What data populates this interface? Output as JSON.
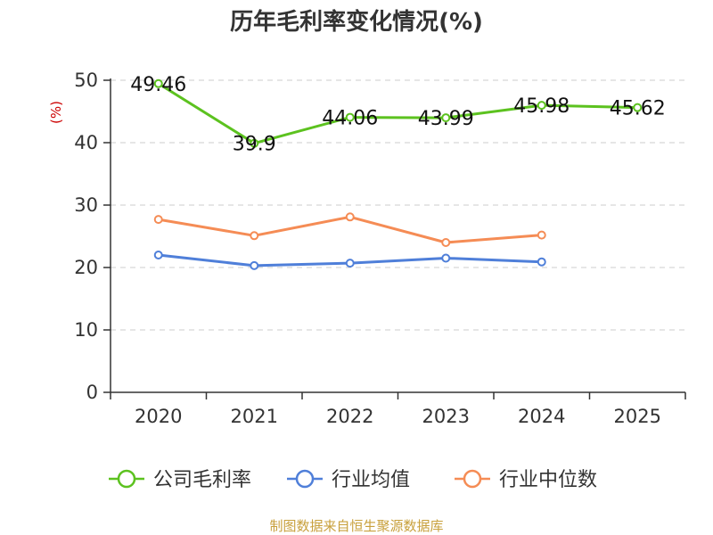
{
  "chart_data": {
    "type": "line",
    "title": "历年毛利率变化情况(%)",
    "ylabel": "(%)",
    "xlabel": "",
    "categories": [
      "2020",
      "2021",
      "2022",
      "2023",
      "2024",
      "2025"
    ],
    "ylim": [
      0,
      50
    ],
    "yticks": [
      0,
      10,
      20,
      30,
      40,
      50
    ],
    "grid": true,
    "legend_position": "bottom",
    "series": [
      {
        "name": "公司毛利率",
        "color": "#5cc21f",
        "values": [
          49.46,
          39.9,
          44.06,
          43.99,
          45.98,
          45.62
        ],
        "labels": [
          "49.46",
          "39.9",
          "44.06",
          "43.99",
          "45.98",
          "45.62"
        ]
      },
      {
        "name": "行业均值",
        "color": "#4f7fd9",
        "values": [
          22.0,
          20.3,
          20.7,
          21.5,
          20.9,
          null
        ]
      },
      {
        "name": "行业中位数",
        "color": "#f58c55",
        "values": [
          27.7,
          25.1,
          28.1,
          24.0,
          25.2,
          null
        ]
      }
    ]
  },
  "source_text": "制图数据来自恒生聚源数据库",
  "colors": {
    "ylabel": "#cc0000",
    "source": "#c8a03c",
    "axis": "#333333",
    "grid": "#cccccc"
  }
}
